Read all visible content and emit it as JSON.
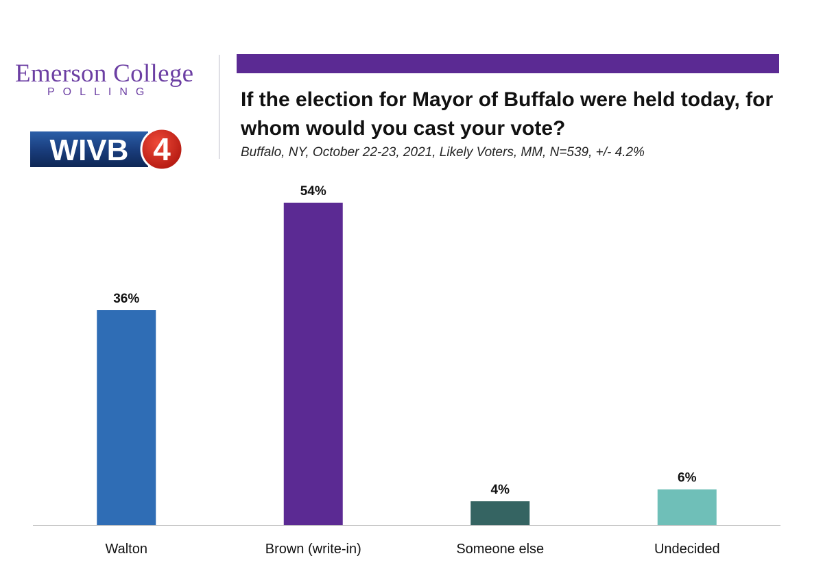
{
  "header": {
    "brand": "Emerson College",
    "brand_sub": "POLLING",
    "partner_logo": "WIVB4",
    "partner_logo_text": "WIVB",
    "partner_logo_number": "4",
    "accent_color": "#5b2a93"
  },
  "chart_data": {
    "type": "bar",
    "title": "If the election for Mayor of Buffalo were held today, for whom would you cast your vote?",
    "subtitle": "Buffalo, NY, October 22-23, 2021, Likely Voters, MM, N=539, +/- 4.2%",
    "categories": [
      "Walton",
      "Brown (write-in)",
      "Someone else",
      "Undecided"
    ],
    "values": [
      36,
      54,
      4,
      6
    ],
    "value_labels": [
      "36%",
      "54%",
      "4%",
      "6%"
    ],
    "colors": [
      "#2f6db5",
      "#5b2a93",
      "#356462",
      "#6fbfb8"
    ],
    "ylim": [
      0,
      54
    ],
    "grid": false,
    "legend": "none"
  }
}
